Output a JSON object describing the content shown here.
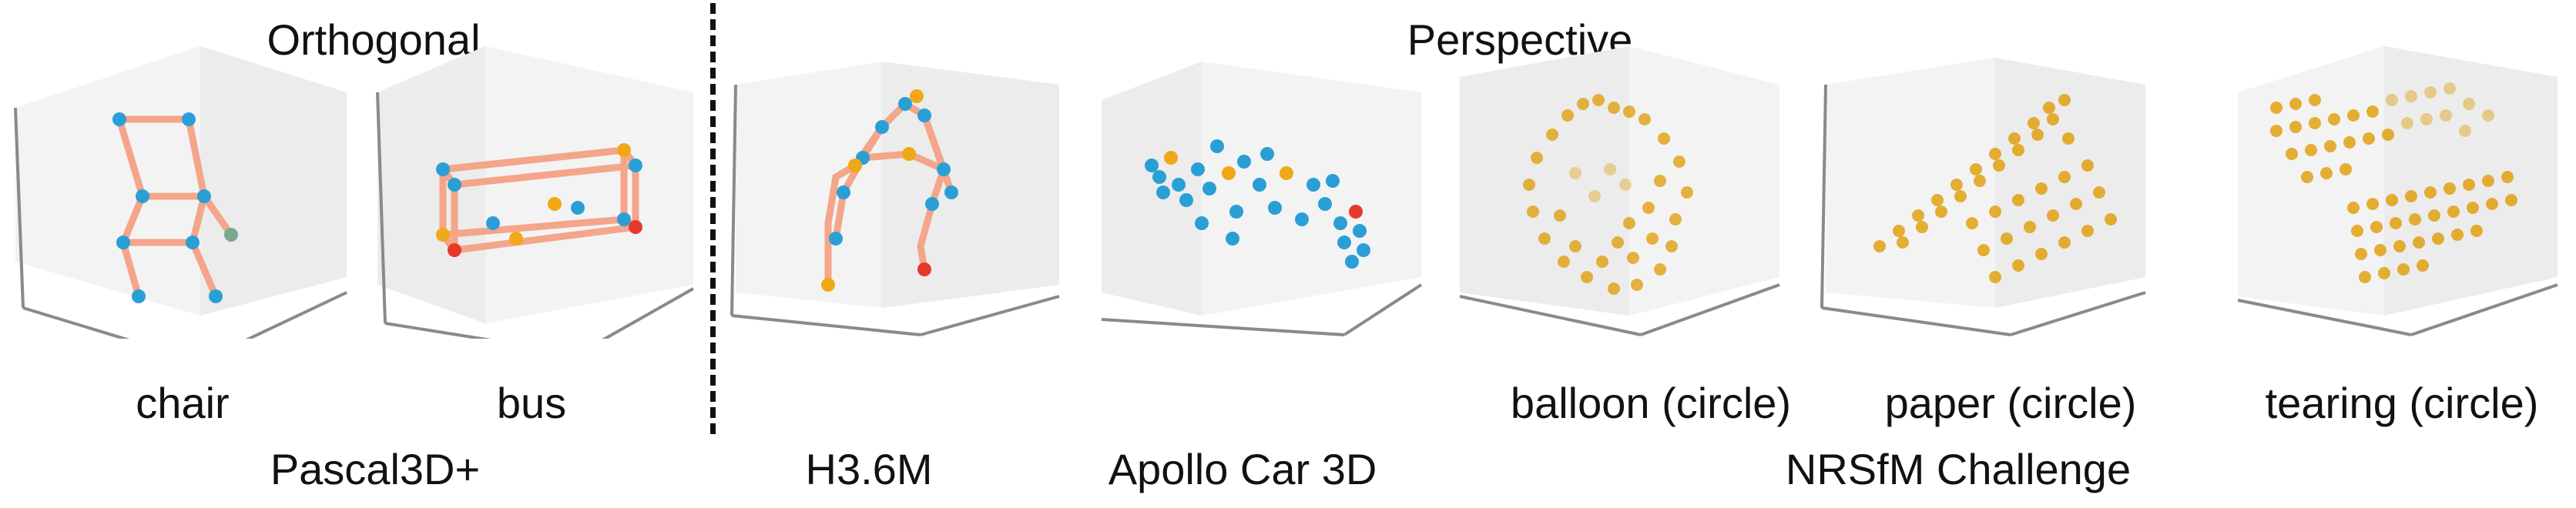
{
  "headers": {
    "orthogonal": "Orthogonal",
    "perspective": "Perspective"
  },
  "panel_labels": {
    "chair": "chair",
    "bus": "bus",
    "balloon": "balloon (circle)",
    "paper": "paper (circle)",
    "tearing": "tearing (circle)"
  },
  "dataset_labels": {
    "pascal": "Pascal3D+",
    "h36m": "H3.6M",
    "apollo": "Apollo Car 3D",
    "nrsfm": "NRSfM Challenge"
  },
  "colors": {
    "skeleton": "#f4a58a",
    "blue_point": "#2a9fd6",
    "orange_point": "#f0a818",
    "red_point": "#e53a2a",
    "gold_point": "#e0a010",
    "axis": "#8a8a8a",
    "pane": "#f1f1f1"
  }
}
